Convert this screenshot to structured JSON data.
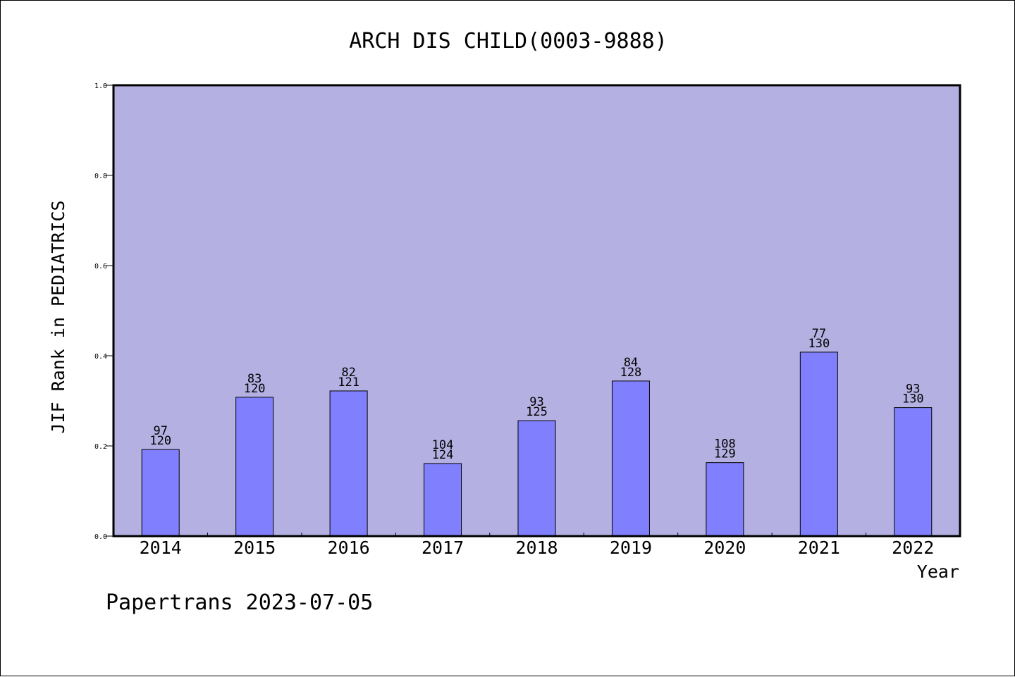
{
  "chart_data": {
    "type": "bar",
    "title": "ARCH DIS CHILD(0003-9888)",
    "xlabel": "Year",
    "ylabel": "JIF Rank in PEDIATRICS",
    "ylim": [
      0,
      1.0
    ],
    "yticks": [
      "0.0",
      "0.2",
      "0.4",
      "0.6",
      "0.8",
      "1.0"
    ],
    "categories": [
      "2014",
      "2015",
      "2016",
      "2017",
      "2018",
      "2019",
      "2020",
      "2021",
      "2022"
    ],
    "values": [
      0.192,
      0.308,
      0.322,
      0.161,
      0.256,
      0.344,
      0.163,
      0.408,
      0.285
    ],
    "rank": [
      "97",
      "83",
      "82",
      "104",
      "93",
      "84",
      "108",
      "77",
      "93"
    ],
    "total": [
      "120",
      "120",
      "121",
      "124",
      "125",
      "128",
      "129",
      "130",
      "130"
    ],
    "grid": false,
    "colors": {
      "plot_background": "#b5b0e2",
      "bar_fill": "#8080fe",
      "bar_stroke": "#000000",
      "axis": "#000000"
    }
  },
  "footer": {
    "watermark": "Papertrans 2023-07-05"
  }
}
